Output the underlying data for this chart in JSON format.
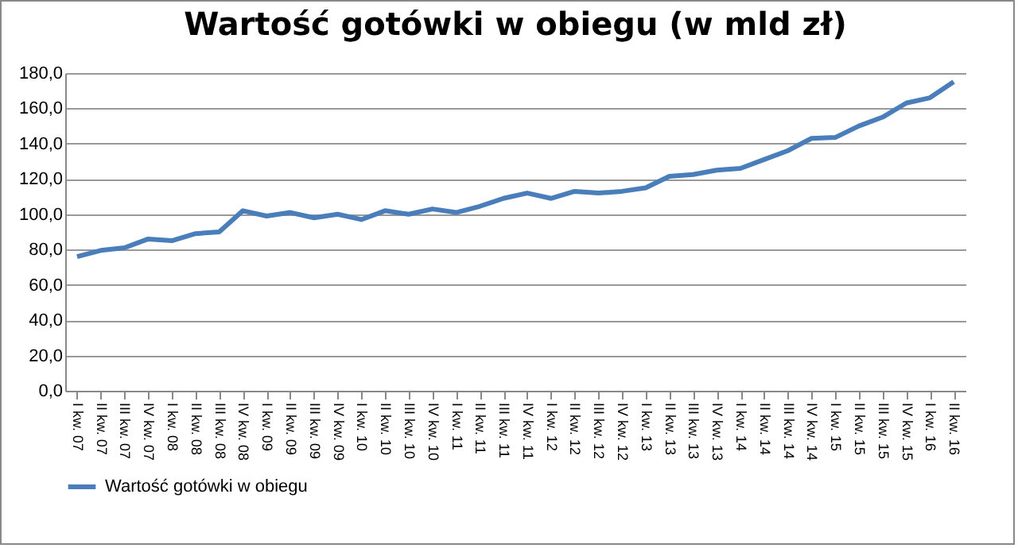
{
  "chart_data": {
    "type": "line",
    "title": "Wartość gotówki w obiegu (w mld zł)",
    "categories": [
      "I kw. 07",
      "II kw. 07",
      "III kw. 07",
      "IV kw. 07",
      "I kw. 08",
      "II kw. 08",
      "III kw. 08",
      "IV kw. 08",
      "I kw. 09",
      "II kw. 09",
      "III kw. 09",
      "IV kw. 09",
      "I kw. 10",
      "II kw. 10",
      "III kw. 10",
      "IV kw. 10",
      "I kw. 11",
      "II kw. 11",
      "III kw. 11",
      "IV kw. 11",
      "I kw. 12",
      "II kw. 12",
      "III kw. 12",
      "IV kw. 12",
      "I kw. 13",
      "II kw. 13",
      "III kw. 13",
      "IV kw. 13",
      "I kw. 14",
      "II kw. 14",
      "III kw. 14",
      "IV kw. 14",
      "I kw. 15",
      "II kw. 15",
      "III kw. 15",
      "IV kw. 15",
      "I kw. 16",
      "II kw. 16"
    ],
    "series": [
      {
        "name": "Wartość gotówki w obiegu",
        "color": "#4a7ebb",
        "values": [
          76,
          79.5,
          81,
          86,
          85,
          89,
          90,
          102,
          99,
          101,
          98,
          100,
          97,
          102,
          100,
          103,
          101,
          104.5,
          109,
          112,
          109,
          113,
          112,
          113,
          115,
          121.5,
          122.5,
          125,
          126,
          131,
          136,
          143,
          143.5,
          150,
          155,
          163,
          166,
          175
        ]
      }
    ],
    "ylim": [
      0,
      180
    ],
    "yticks": [
      {
        "value": 0,
        "label": "0,0"
      },
      {
        "value": 20,
        "label": "20,0"
      },
      {
        "value": 40,
        "label": "40,0"
      },
      {
        "value": 60,
        "label": "60,0"
      },
      {
        "value": 80,
        "label": "80,0"
      },
      {
        "value": 100,
        "label": "100,0"
      },
      {
        "value": 120,
        "label": "120,0"
      },
      {
        "value": 140,
        "label": "140,0"
      },
      {
        "value": 160,
        "label": "160,0"
      },
      {
        "value": 180,
        "label": "180,0"
      }
    ],
    "grid": "y",
    "legend": "bottom",
    "marker": "none",
    "line_style": "solid"
  }
}
